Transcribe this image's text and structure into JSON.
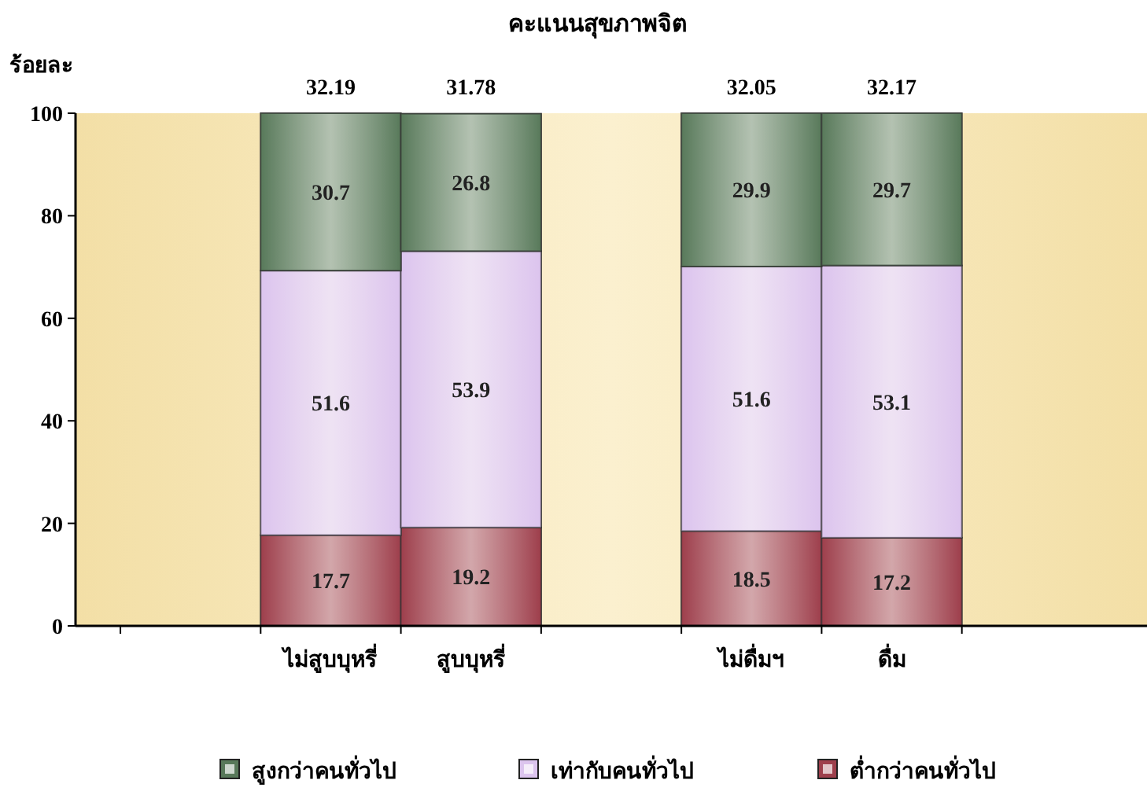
{
  "chart_data": {
    "type": "bar",
    "stacked": true,
    "title": "คะแนนสุขภาพจิต",
    "ylabel": "ร้อยละ",
    "categories": [
      null,
      "ไม่สูบบุหรี่",
      "สูบบุหรี่",
      null,
      "ไม่ดื่มฯ",
      "ดื่ม",
      null
    ],
    "series": [
      {
        "name": "ต่ำกว่าคนทั่วไป",
        "color": "#9e3f4c",
        "values": [
          null,
          17.7,
          19.2,
          null,
          18.5,
          17.2,
          null
        ]
      },
      {
        "name": "เท่ากับคนทั่วไป",
        "color": "#dcc4ee",
        "values": [
          null,
          51.6,
          53.9,
          null,
          51.6,
          53.1,
          null
        ]
      },
      {
        "name": "สูงกว่าคนทั่วไป",
        "color": "#58795a",
        "values": [
          null,
          30.7,
          26.8,
          null,
          29.9,
          29.7,
          null
        ]
      }
    ],
    "data_labels": true,
    "annotations": [
      {
        "text": "32.19",
        "x": "ไม่สูบบุหรี่",
        "y": 100
      },
      {
        "text": "31.78",
        "x": "สูบบุหรี่",
        "y": 100
      },
      {
        "text": "32.05",
        "x": "ไม่ดื่มฯ",
        "y": 100
      },
      {
        "text": "32.17",
        "x": "ดื่ม",
        "y": 100
      }
    ],
    "ylim": [
      0,
      100
    ],
    "yticks": [
      0,
      20,
      40,
      60,
      80,
      100
    ],
    "grid": false,
    "legend": "bottom"
  }
}
